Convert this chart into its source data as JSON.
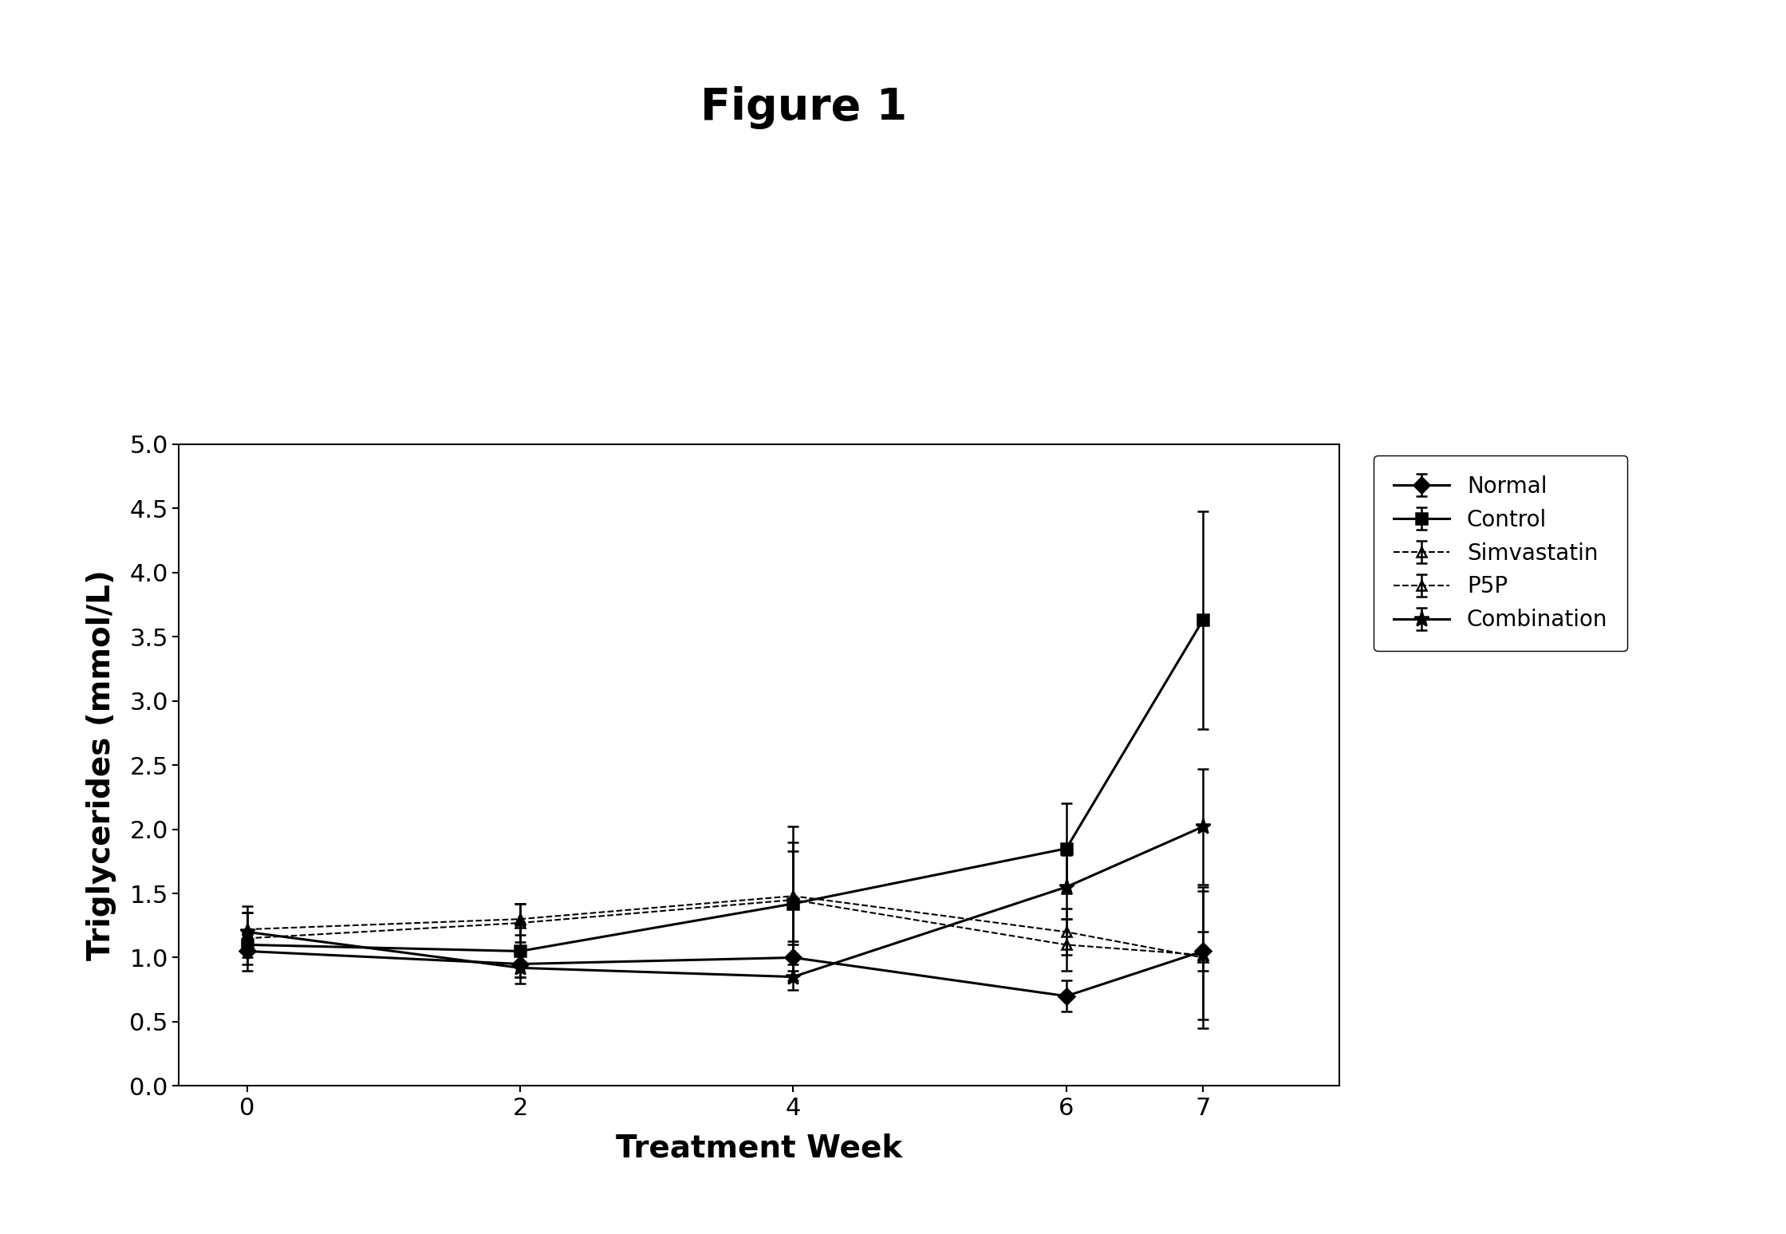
{
  "title": "Figure 1",
  "xlabel": "Treatment Week",
  "ylabel": "Triglycerides (mmol/L)",
  "x": [
    0,
    2,
    4,
    6,
    7
  ],
  "ylim": [
    0,
    5
  ],
  "yticks": [
    0,
    0.5,
    1,
    1.5,
    2,
    2.5,
    3,
    3.5,
    4,
    4.5,
    5
  ],
  "series": {
    "Normal": {
      "y": [
        1.05,
        0.95,
        1.0,
        0.7,
        1.05
      ],
      "yerr": [
        0.15,
        0.1,
        0.1,
        0.12,
        0.15
      ],
      "color": "#000000",
      "linestyle": "-",
      "marker": "D",
      "markersize": 10,
      "linewidth": 2.2,
      "fillstyle": "full"
    },
    "Control": {
      "y": [
        1.1,
        1.05,
        1.42,
        1.85,
        3.63
      ],
      "yerr": [
        0.1,
        0.2,
        0.6,
        0.35,
        0.85
      ],
      "color": "#000000",
      "linestyle": "-",
      "marker": "s",
      "markersize": 10,
      "linewidth": 2.2,
      "fillstyle": "full"
    },
    "Simvastatin": {
      "y": [
        1.15,
        1.27,
        1.45,
        1.1,
        1.02
      ],
      "yerr": [
        0.2,
        0.15,
        0.45,
        0.2,
        0.5
      ],
      "color": "#000000",
      "linestyle": "--",
      "marker": "^",
      "markersize": 8,
      "linewidth": 1.5,
      "fillstyle": "none"
    },
    "P5P": {
      "y": [
        1.22,
        1.3,
        1.48,
        1.2,
        1.0
      ],
      "yerr": [
        0.18,
        0.12,
        0.35,
        0.18,
        0.55
      ],
      "color": "#000000",
      "linestyle": "--",
      "marker": "^",
      "markersize": 8,
      "linewidth": 1.5,
      "fillstyle": "none"
    },
    "Combination": {
      "y": [
        1.2,
        0.92,
        0.85,
        1.55,
        2.02
      ],
      "yerr": [
        0.15,
        0.12,
        0.1,
        0.25,
        0.45
      ],
      "color": "#000000",
      "linestyle": "-",
      "marker": "*",
      "markersize": 14,
      "linewidth": 2.2,
      "fillstyle": "full"
    }
  },
  "legend_order": [
    "Normal",
    "Control",
    "Simvastatin",
    "P5P",
    "Combination"
  ],
  "background_color": "#ffffff",
  "title_fontsize": 40,
  "axis_label_fontsize": 28,
  "tick_fontsize": 22,
  "legend_fontsize": 20
}
